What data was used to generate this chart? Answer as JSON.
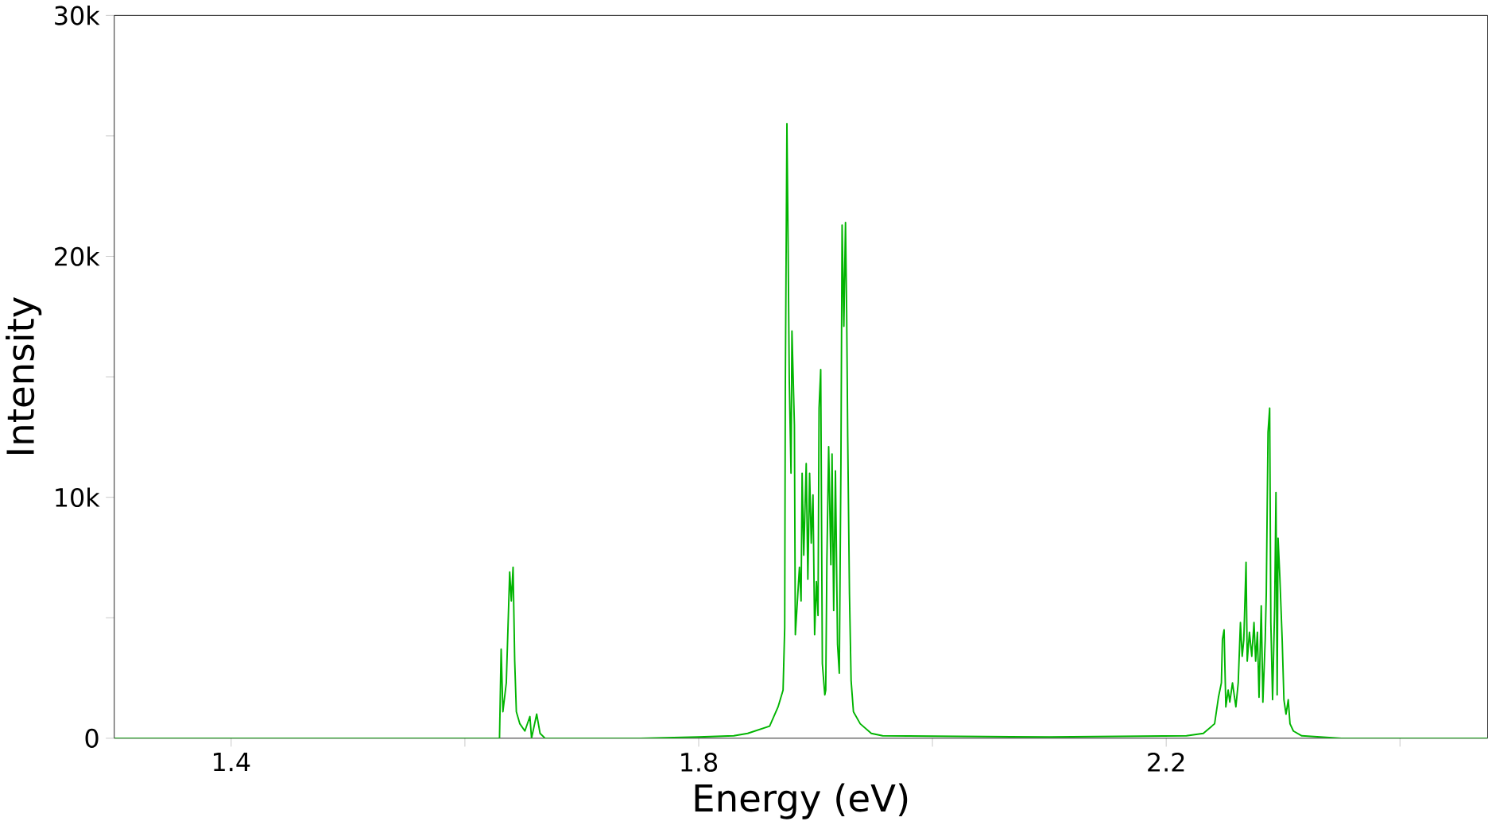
{
  "chart_data": {
    "type": "line",
    "xlabel": "Energy (eV)",
    "ylabel": "Intensity",
    "xlim": [
      1.3,
      2.475
    ],
    "xticks": [
      1.4,
      {
        "value": 1.6,
        "label": null
      },
      1.8,
      {
        "value": 2.0,
        "label": null
      },
      2.2,
      {
        "value": 2.4,
        "label": null
      }
    ],
    "ylim": [
      0,
      30000
    ],
    "yticks": [
      {
        "value": 0,
        "label": "0"
      },
      {
        "value": 5000,
        "label": null
      },
      {
        "value": 10000,
        "label": "10k"
      },
      {
        "value": 15000,
        "label": null
      },
      {
        "value": 20000,
        "label": "20k"
      },
      {
        "value": 25000,
        "label": null
      },
      {
        "value": 30000,
        "label": "30k"
      }
    ],
    "marker": "none",
    "line_style": "solid",
    "series": [
      {
        "color": "#00b400",
        "x": [
          1.3,
          1.62,
          1.6296,
          1.631,
          1.6325,
          1.6354,
          1.6383,
          1.6397,
          1.6412,
          1.6426,
          1.644,
          1.647,
          1.6513,
          1.6556,
          1.657,
          1.6614,
          1.6643,
          1.6686,
          1.75,
          1.8,
          1.83,
          1.8419,
          1.8607,
          1.8679,
          1.8722,
          1.8736,
          1.8741,
          1.8755,
          1.8765,
          1.8775,
          1.879,
          1.8798,
          1.8819,
          1.8827,
          1.8862,
          1.8876,
          1.8885,
          1.8899,
          1.892,
          1.8934,
          1.8949,
          1.8963,
          1.8978,
          1.8992,
          1.9007,
          1.9021,
          1.903,
          1.9044,
          1.9058,
          1.9079,
          1.9087,
          1.9097,
          1.9112,
          1.9131,
          1.9141,
          1.9155,
          1.917,
          1.9188,
          1.9203,
          1.9217,
          1.9227,
          1.9242,
          1.9256,
          1.9266,
          1.9275,
          1.929,
          1.9304,
          1.9324,
          1.9382,
          1.9477,
          1.9574,
          2.1,
          2.2173,
          2.2317,
          2.2414,
          2.2447,
          2.2472,
          2.2481,
          2.2495,
          2.251,
          2.253,
          2.2544,
          2.2567,
          2.2596,
          2.2616,
          2.2635,
          2.265,
          2.2664,
          2.2683,
          2.2693,
          2.2712,
          2.2732,
          2.2751,
          2.2765,
          2.278,
          2.2794,
          2.2813,
          2.2827,
          2.2847,
          2.2856,
          2.2871,
          2.2885,
          2.2895,
          2.291,
          2.2928,
          2.2939,
          2.2949,
          2.2957,
          2.2972,
          2.2992,
          2.3007,
          2.3025,
          2.3044,
          2.3059,
          2.3088,
          2.316,
          2.35,
          2.475
        ],
        "values": [
          0,
          0,
          0,
          3700,
          1100,
          2300,
          6900,
          5700,
          7100,
          3200,
          1100,
          600,
          300,
          900,
          0,
          1000,
          200,
          0,
          0,
          50,
          100,
          200,
          500,
          1300,
          2000,
          4600,
          14400,
          25500,
          20500,
          14900,
          11000,
          16900,
          13000,
          4300,
          7100,
          5700,
          11000,
          7600,
          11400,
          6600,
          11000,
          8100,
          10100,
          4300,
          6500,
          5100,
          13700,
          15300,
          3100,
          1800,
          2000,
          7400,
          12100,
          7200,
          11800,
          5300,
          11100,
          3900,
          2700,
          11400,
          21300,
          17100,
          21400,
          17700,
          12500,
          6000,
          2400,
          1100,
          600,
          200,
          100,
          50,
          100,
          200,
          600,
          1700,
          2300,
          4100,
          4500,
          1300,
          2000,
          1500,
          2300,
          1300,
          2300,
          4800,
          3400,
          4100,
          7300,
          3200,
          4400,
          3400,
          4800,
          3200,
          4400,
          1700,
          5500,
          1500,
          4100,
          6000,
          12700,
          13700,
          4800,
          1600,
          5500,
          10200,
          1800,
          8300,
          6700,
          4100,
          1600,
          1000,
          1600,
          600,
          300,
          100,
          0,
          0
        ]
      }
    ]
  }
}
